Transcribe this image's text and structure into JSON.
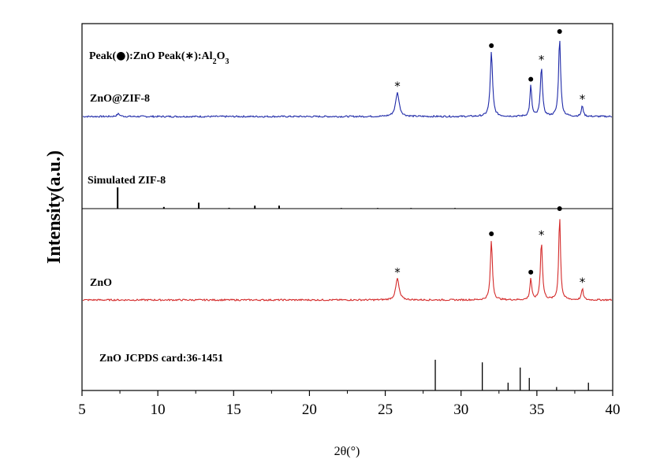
{
  "chart_data": {
    "type": "line",
    "xlabel": "2θ(°)",
    "ylabel": "Intensity(a.u.)",
    "xlim": [
      5,
      40
    ],
    "xticks": [
      5,
      10,
      15,
      20,
      25,
      30,
      35,
      40
    ],
    "legend_text": {
      "prefix": "Peak(",
      "zno_suffix": "):ZnO Peak(",
      "al_mid": "):Al",
      "sub1": "2",
      "o": "O",
      "sub2": "3"
    },
    "series": [
      {
        "name": "ZnO@ZIF-8",
        "color": "#1f2aa8",
        "peaks": [
          {
            "x": 7.4,
            "h": 0.04
          },
          {
            "x": 25.8,
            "h": 0.37,
            "w": 0.14
          },
          {
            "x": 32.0,
            "h": 1.0,
            "w": 0.09
          },
          {
            "x": 34.6,
            "h": 0.48,
            "w": 0.07
          },
          {
            "x": 35.3,
            "h": 0.78,
            "w": 0.08
          },
          {
            "x": 36.5,
            "h": 1.22,
            "w": 0.08
          },
          {
            "x": 38.0,
            "h": 0.17,
            "w": 0.07
          }
        ],
        "markers": [
          {
            "x": 25.8,
            "h": 0.37,
            "type": "star"
          },
          {
            "x": 32.0,
            "h": 1.0,
            "type": "dot"
          },
          {
            "x": 34.6,
            "h": 0.48,
            "type": "dot"
          },
          {
            "x": 35.3,
            "h": 0.78,
            "type": "star"
          },
          {
            "x": 36.5,
            "h": 1.22,
            "type": "dot"
          },
          {
            "x": 38.0,
            "h": 0.17,
            "type": "star"
          }
        ]
      },
      {
        "name": "Simulated ZIF-8",
        "color": "#000000",
        "sticks": [
          {
            "x": 7.35,
            "h": 1.0
          },
          {
            "x": 10.4,
            "h": 0.08
          },
          {
            "x": 12.7,
            "h": 0.28
          },
          {
            "x": 14.7,
            "h": 0.04
          },
          {
            "x": 16.4,
            "h": 0.14
          },
          {
            "x": 18.0,
            "h": 0.14
          },
          {
            "x": 22.1,
            "h": 0.03
          },
          {
            "x": 24.5,
            "h": 0.03
          },
          {
            "x": 26.7,
            "h": 0.03
          },
          {
            "x": 29.6,
            "h": 0.03
          }
        ]
      },
      {
        "name": "ZnO",
        "color": "#d42a2a",
        "peaks": [
          {
            "x": 25.8,
            "h": 0.34,
            "w": 0.13
          },
          {
            "x": 32.0,
            "h": 0.95,
            "w": 0.08
          },
          {
            "x": 34.6,
            "h": 0.34,
            "w": 0.07
          },
          {
            "x": 35.3,
            "h": 0.93,
            "w": 0.08
          },
          {
            "x": 36.5,
            "h": 1.35,
            "w": 0.07
          },
          {
            "x": 38.0,
            "h": 0.18,
            "w": 0.07
          }
        ],
        "markers": [
          {
            "x": 25.8,
            "h": 0.34,
            "type": "star"
          },
          {
            "x": 32.0,
            "h": 0.95,
            "type": "dot"
          },
          {
            "x": 34.6,
            "h": 0.34,
            "type": "dot"
          },
          {
            "x": 35.3,
            "h": 0.93,
            "type": "star"
          },
          {
            "x": 36.5,
            "h": 1.35,
            "type": "dot"
          },
          {
            "x": 38.0,
            "h": 0.18,
            "type": "star"
          }
        ]
      },
      {
        "name": "ZnO JCPDS card:36-1451",
        "color": "#000000",
        "sticks": [
          {
            "x": 28.3,
            "h": 0.71
          },
          {
            "x": 31.4,
            "h": 0.65
          },
          {
            "x": 33.1,
            "h": 0.18
          },
          {
            "x": 33.9,
            "h": 0.53
          },
          {
            "x": 34.5,
            "h": 0.29
          },
          {
            "x": 36.3,
            "h": 0.08
          },
          {
            "x": 38.4,
            "h": 0.18
          }
        ]
      }
    ]
  }
}
